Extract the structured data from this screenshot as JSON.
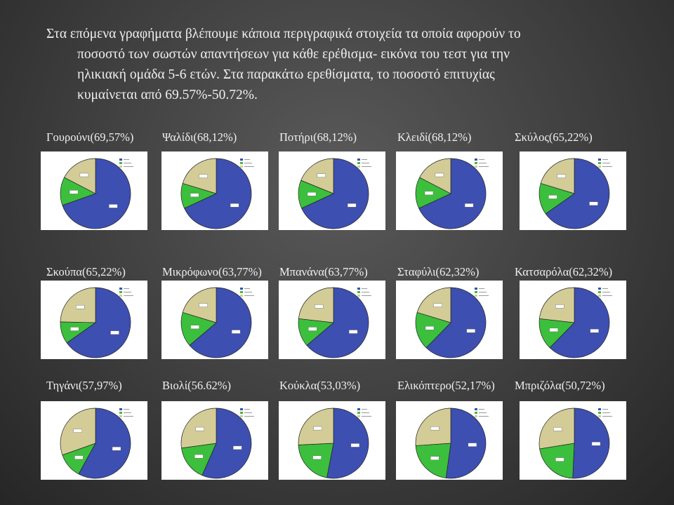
{
  "intro": {
    "line1": "Στα επόμενα γραφήματα βλέπουμε κάποια περιγραφικά στοιχεία τα οποία αφορούν το",
    "line2": "ποσοστό των σωστών απαντήσεων για κάθε ερέθισμα- εικόνα του τεστ για την",
    "line3": "ηλικιακή ομάδα 5-6 ετών. Στα παρακάτω ερεθίσματα, το ποσοστό επιτυχίας",
    "line4": "κυμαίνεται από 69.57%-50.72%."
  },
  "colors": {
    "correct": "#3d4fb0",
    "wrong": "#3cbf3c",
    "dontknow": "#d3cc96"
  },
  "rows": [
    {
      "labels": [
        "Γουρούνι(69,57%)",
        "Ψαλίδι(68,12%)",
        "Ποτήρι(68,12%)",
        "Κλειδί(68,12%)",
        "Σκύλος(65,22%)"
      ],
      "chart_data": [
        {
          "type": "pie",
          "values": [
            69.57,
            13.04,
            17.39
          ]
        },
        {
          "type": "pie",
          "values": [
            68.12,
            11.59,
            20.29
          ]
        },
        {
          "type": "pie",
          "values": [
            68.12,
            13.04,
            18.84
          ]
        },
        {
          "type": "pie",
          "values": [
            68.12,
            14.49,
            17.39
          ]
        },
        {
          "type": "pie",
          "values": [
            65.22,
            14.49,
            20.29
          ]
        }
      ]
    },
    {
      "labels": [
        "Σκούπα(65,22%)",
        "Μικρόφωνο(63,77%)",
        "Μπανάνα(63,77%)",
        "Σταφύλι(62,32%)",
        "Κατσαρόλα(62,32%)"
      ],
      "chart_data": [
        {
          "type": "pie",
          "values": [
            65.22,
            10.14,
            24.64
          ]
        },
        {
          "type": "pie",
          "values": [
            63.77,
            15.94,
            20.29
          ]
        },
        {
          "type": "pie",
          "values": [
            63.77,
            13.04,
            23.19
          ]
        },
        {
          "type": "pie",
          "values": [
            62.32,
            17.39,
            20.29
          ]
        },
        {
          "type": "pie",
          "values": [
            62.32,
            14.49,
            23.19
          ]
        }
      ]
    },
    {
      "labels": [
        "Τηγάνι(57,97%)",
        "Βιολί(56.62%)",
        "Κούκλα(53,03%)",
        "Ελικόπτερο(52,17%)",
        "Μπριζόλα(50,72%)"
      ],
      "chart_data": [
        {
          "type": "pie",
          "values": [
            57.97,
            11.59,
            30.43
          ]
        },
        {
          "type": "pie",
          "values": [
            56.62,
            16.18,
            27.2
          ]
        },
        {
          "type": "pie",
          "values": [
            53.03,
            21.21,
            25.76
          ]
        },
        {
          "type": "pie",
          "values": [
            52.17,
            21.74,
            26.09
          ]
        },
        {
          "type": "pie",
          "values": [
            50.72,
            21.74,
            27.54
          ]
        }
      ]
    }
  ]
}
